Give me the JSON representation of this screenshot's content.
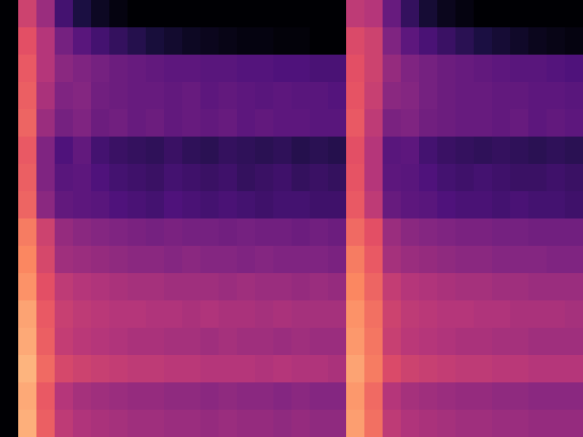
{
  "chart_data": {
    "type": "heatmap",
    "tick_labels": false,
    "zlim": [
      -80,
      0
    ],
    "values": [
      [
        -80,
        -35,
        -45,
        -62,
        -70,
        -75,
        -78,
        -80,
        -80,
        -80,
        -80,
        -80,
        -80,
        -80,
        -80,
        -80,
        -80,
        -80,
        -80,
        -38,
        -40,
        -55,
        -65,
        -72,
        -76,
        -78,
        -80,
        -80,
        -80,
        -80,
        -80,
        -80
      ],
      [
        -80,
        -30,
        -40,
        -52,
        -58,
        -62,
        -65,
        -68,
        -71,
        -73,
        -75,
        -76,
        -77,
        -78,
        -78,
        -79,
        -79,
        -80,
        -80,
        -32,
        -35,
        -50,
        -57,
        -61,
        -64,
        -67,
        -70,
        -72,
        -74,
        -76,
        -77,
        -78
      ],
      [
        -80,
        -28,
        -40,
        -48,
        -50,
        -52,
        -54,
        -55,
        -56,
        -57,
        -57,
        -58,
        -58,
        -59,
        -59,
        -60,
        -60,
        -61,
        -61,
        -30,
        -35,
        -46,
        -50,
        -52,
        -54,
        -55,
        -56,
        -57,
        -58,
        -58,
        -59,
        -60
      ],
      [
        -80,
        -27,
        -42,
        -50,
        -49,
        -53,
        -54,
        -55,
        -55,
        -56,
        -55,
        -57,
        -56,
        -57,
        -58,
        -57,
        -58,
        -58,
        -59,
        -29,
        -36,
        -48,
        -49,
        -52,
        -54,
        -55,
        -55,
        -56,
        -56,
        -57,
        -57,
        -58
      ],
      [
        -80,
        -26,
        -45,
        -52,
        -50,
        -54,
        -53,
        -55,
        -54,
        -56,
        -55,
        -56,
        -55,
        -57,
        -56,
        -57,
        -57,
        -58,
        -58,
        -28,
        -38,
        -51,
        -50,
        -53,
        -54,
        -55,
        -55,
        -56,
        -55,
        -57,
        -56,
        -57
      ],
      [
        -80,
        -28,
        -50,
        -60,
        -56,
        -62,
        -64,
        -65,
        -66,
        -64,
        -66,
        -67,
        -65,
        -66,
        -67,
        -66,
        -68,
        -67,
        -68,
        -30,
        -40,
        -58,
        -57,
        -62,
        -64,
        -65,
        -66,
        -65,
        -66,
        -67,
        -66,
        -67
      ],
      [
        -80,
        -27,
        -50,
        -58,
        -57,
        -60,
        -62,
        -63,
        -64,
        -62,
        -63,
        -64,
        -63,
        -65,
        -64,
        -63,
        -65,
        -64,
        -65,
        -29,
        -40,
        -57,
        -58,
        -60,
        -62,
        -63,
        -62,
        -63,
        -64,
        -64,
        -63,
        -64
      ],
      [
        -80,
        -26,
        -48,
        -56,
        -57,
        -58,
        -60,
        -61,
        -62,
        -60,
        -61,
        -62,
        -61,
        -62,
        -63,
        -62,
        -62,
        -63,
        -63,
        -28,
        -38,
        -55,
        -57,
        -58,
        -60,
        -61,
        -61,
        -62,
        -61,
        -62,
        -62,
        -63
      ],
      [
        -80,
        -22,
        -35,
        -46,
        -48,
        -49,
        -50,
        -51,
        -52,
        -51,
        -52,
        -52,
        -53,
        -52,
        -53,
        -53,
        -54,
        -53,
        -54,
        -25,
        -30,
        -45,
        -48,
        -49,
        -50,
        -51,
        -51,
        -52,
        -52,
        -53,
        -53,
        -53
      ],
      [
        -80,
        -20,
        -33,
        -44,
        -45,
        -46,
        -47,
        -48,
        -48,
        -49,
        -48,
        -49,
        -49,
        -50,
        -49,
        -50,
        -50,
        -50,
        -51,
        -22,
        -28,
        -43,
        -45,
        -46,
        -47,
        -48,
        -48,
        -49,
        -49,
        -49,
        -50,
        -50
      ],
      [
        -80,
        -18,
        -30,
        -38,
        -40,
        -41,
        -42,
        -43,
        -43,
        -44,
        -44,
        -44,
        -45,
        -44,
        -45,
        -45,
        -46,
        -45,
        -46,
        -20,
        -26,
        -37,
        -40,
        -41,
        -42,
        -43,
        -43,
        -44,
        -44,
        -45,
        -45,
        -45
      ],
      [
        -80,
        -15,
        -28,
        -36,
        -38,
        -39,
        -40,
        -40,
        -41,
        -41,
        -42,
        -41,
        -42,
        -42,
        -43,
        -42,
        -43,
        -43,
        -43,
        -18,
        -24,
        -35,
        -38,
        -39,
        -40,
        -40,
        -41,
        -41,
        -42,
        -42,
        -42,
        -43
      ],
      [
        -80,
        -14,
        -27,
        -37,
        -39,
        -40,
        -41,
        -42,
        -42,
        -43,
        -43,
        -44,
        -43,
        -44,
        -44,
        -45,
        -44,
        -45,
        -45,
        -17,
        -23,
        -36,
        -39,
        -40,
        -41,
        -42,
        -42,
        -43,
        -43,
        -44,
        -44,
        -44
      ],
      [
        -80,
        -12,
        -25,
        -33,
        -35,
        -36,
        -37,
        -38,
        -38,
        -39,
        -39,
        -40,
        -40,
        -40,
        -41,
        -40,
        -41,
        -41,
        -42,
        -15,
        -22,
        -32,
        -35,
        -36,
        -37,
        -38,
        -38,
        -39,
        -39,
        -40,
        -40,
        -40
      ],
      [
        -80,
        -14,
        -28,
        -40,
        -43,
        -44,
        -45,
        -46,
        -46,
        -47,
        -47,
        -48,
        -47,
        -48,
        -48,
        -49,
        -48,
        -49,
        -49,
        -17,
        -25,
        -40,
        -43,
        -44,
        -45,
        -46,
        -46,
        -47,
        -47,
        -48,
        -48,
        -48
      ],
      [
        -80,
        -13,
        -27,
        -38,
        -41,
        -42,
        -43,
        -44,
        -44,
        -45,
        -45,
        -46,
        -45,
        -46,
        -46,
        -47,
        -46,
        -47,
        -47,
        -16,
        -24,
        -38,
        -41,
        -42,
        -43,
        -44,
        -44,
        -45,
        -45,
        -46,
        -46,
        -46
      ]
    ]
  }
}
